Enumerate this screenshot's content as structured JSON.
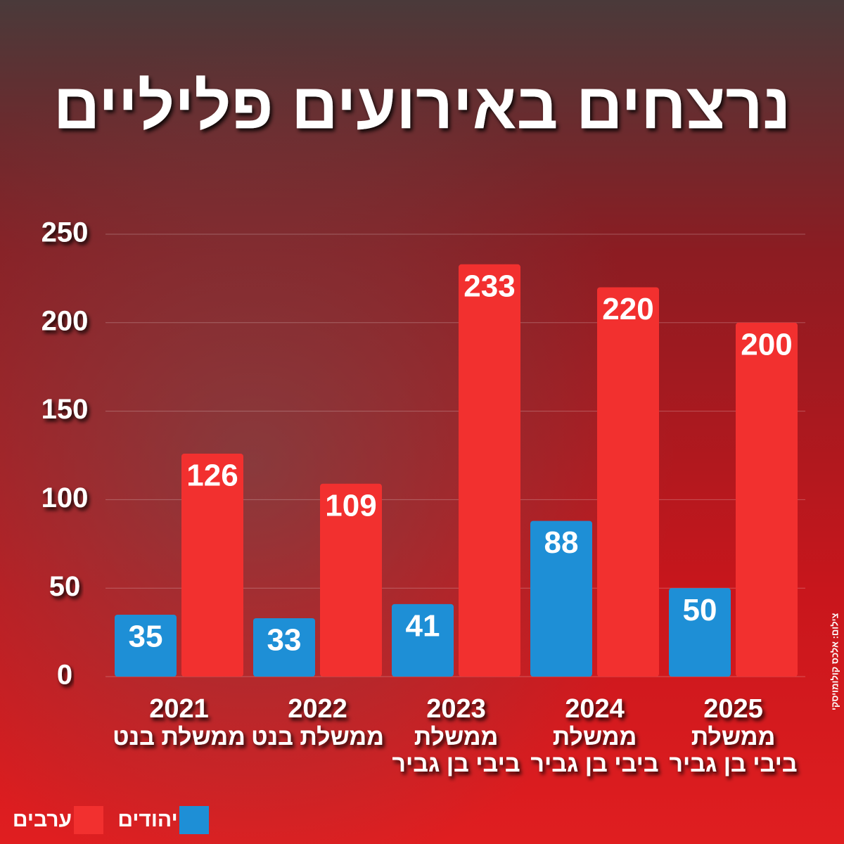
{
  "chart_data": {
    "type": "bar",
    "title": "נרצחים באירועים פליליים",
    "categories": [
      "2021",
      "2022",
      "2023",
      "2024",
      "2025"
    ],
    "governments": [
      [
        "ממשלת בנט"
      ],
      [
        "ממשלת בנט"
      ],
      [
        "ממשלת",
        "ביבי בן גביר"
      ],
      [
        "ממשלת",
        "ביבי בן גביר"
      ],
      [
        "ממשלת",
        "ביבי בן גביר"
      ]
    ],
    "series": [
      {
        "name": "יהודים",
        "color": "#1e8fd6",
        "values": [
          35,
          33,
          41,
          88,
          50
        ]
      },
      {
        "name": "ערבים",
        "color": "#f2302f",
        "values": [
          126,
          109,
          233,
          220,
          200
        ]
      }
    ],
    "ylim": [
      0,
      250
    ],
    "yticks": [
      0,
      50,
      100,
      150,
      200,
      250
    ],
    "grid": true,
    "credit": "צילום: אלכס קולומויסקי"
  }
}
